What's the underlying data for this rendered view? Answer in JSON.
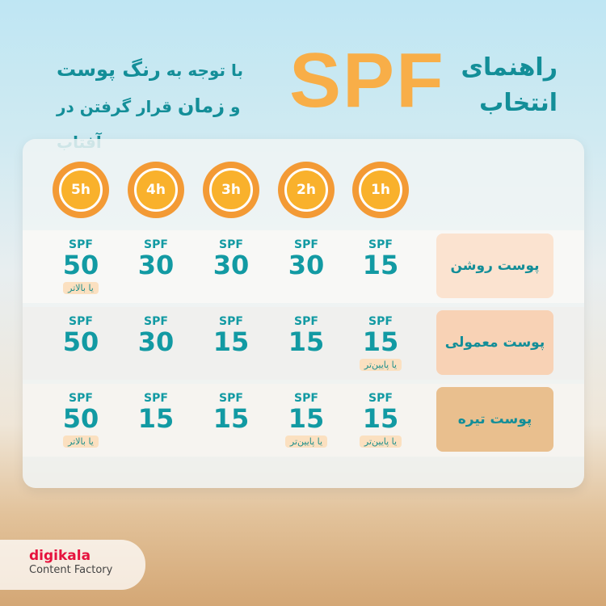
{
  "header": {
    "title_right": [
      "راهنمای",
      "انتخاب"
    ],
    "spf": "SPF",
    "subtitle_line1_a": "با توجه به ",
    "subtitle_line1_b": "رنگ پوست",
    "subtitle_line2_a": "و ",
    "subtitle_line2_b": "زمان",
    "subtitle_line2_c": " قرار گرفتن در آفتاب"
  },
  "hours": [
    "5h",
    "4h",
    "3h",
    "2h",
    "1h"
  ],
  "spf_label": "SPF",
  "rows": [
    {
      "skin": "پوست روشن",
      "color": "#fbe3d0",
      "values": [
        "50",
        "30",
        "30",
        "30",
        "15"
      ],
      "notes": [
        "یا بالاتر",
        "",
        "",
        "",
        ""
      ]
    },
    {
      "skin": "پوست معمولی",
      "color": "#f8d2b5",
      "values": [
        "50",
        "30",
        "15",
        "15",
        "15"
      ],
      "notes": [
        "",
        "",
        "",
        "",
        "یا پایین‌تر"
      ]
    },
    {
      "skin": "پوست تیره",
      "color": "#e9bf8e",
      "values": [
        "50",
        "15",
        "15",
        "15",
        "15"
      ],
      "notes": [
        "یا بالاتر",
        "",
        "",
        "یا پایین‌تر",
        "یا پایین‌تر"
      ]
    }
  ],
  "logo": {
    "brand": "digikala",
    "sub": "Content Factory"
  }
}
